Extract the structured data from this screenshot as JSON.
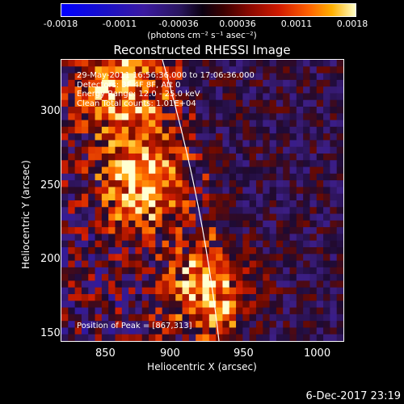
{
  "colorbar": {
    "ticks": [
      "-0.0018",
      "-0.0011",
      "-0.00036",
      "0.00036",
      "0.0011",
      "0.0018"
    ],
    "units_label": "(photons cm⁻² s⁻¹ asec⁻²)"
  },
  "chart_data": {
    "type": "heatmap",
    "title": "Reconstructed RHESSI Image",
    "xlabel": "Heliocentric X (arcsec)",
    "ylabel": "Heliocentric Y (arcsec)",
    "xlim": [
      825,
      1020
    ],
    "ylim": [
      145,
      330
    ],
    "xticks": [
      "850",
      "900",
      "950",
      "1000"
    ],
    "yticks": [
      "150",
      "200",
      "250",
      "300"
    ],
    "color_range": [
      -0.0018,
      0.0018
    ],
    "bright_regions": [
      {
        "x": 867,
        "y": 313
      },
      {
        "x": 880,
        "y": 250
      },
      {
        "x": 930,
        "y": 180
      }
    ],
    "annotations": {
      "line1": "29-May-2011 16:56:36.000 to 17:06:36.000",
      "line2": "Detectors: 3F 4F 8F, Att 0",
      "line3": "Energy Range: 12.0 - 25.0 keV",
      "line4": "Clean    Total counts: 1.01E+04",
      "peak": "Position of Peak = [867,313]"
    }
  },
  "footer": {
    "date": "6-Dec-2017 23:19"
  },
  "colors": {
    "background": "#000000",
    "limb_line": "#ffffff"
  }
}
